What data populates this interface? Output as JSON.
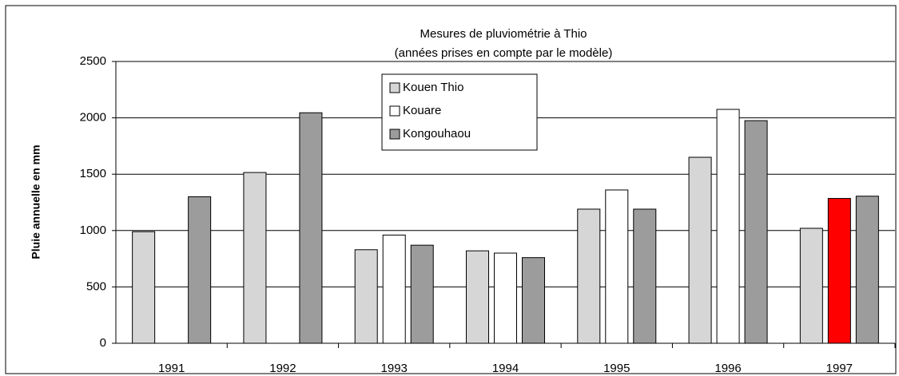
{
  "chart_data": {
    "type": "bar",
    "title": "Mesures de pluviométrie à Thio",
    "subtitle": "(années prises en compte par le modèle)",
    "y_label": "Pluie annuelle en mm",
    "categories": [
      "1991",
      "1992",
      "1993",
      "1994",
      "1995",
      "1996",
      "1997"
    ],
    "series": [
      {
        "name": "Kouen Thio",
        "color": "#d6d6d6",
        "values": [
          990,
          1515,
          830,
          820,
          1190,
          1650,
          1020
        ]
      },
      {
        "name": "Kouare",
        "color": "#ffffff",
        "colors": [
          "#ffffff",
          "#ffffff",
          "#ffffff",
          "#ffffff",
          "#ffffff",
          "#ffffff",
          "#ff0000"
        ],
        "values": [
          null,
          null,
          960,
          800,
          1360,
          2075,
          1285
        ]
      },
      {
        "name": "Kongouhaou",
        "color": "#9c9c9c",
        "values": [
          1300,
          2045,
          870,
          760,
          1190,
          1975,
          1305
        ]
      }
    ],
    "ylim": [
      0,
      2500
    ],
    "yticks": [
      0,
      500,
      1000,
      1500,
      2000,
      2500
    ],
    "grid": true
  }
}
